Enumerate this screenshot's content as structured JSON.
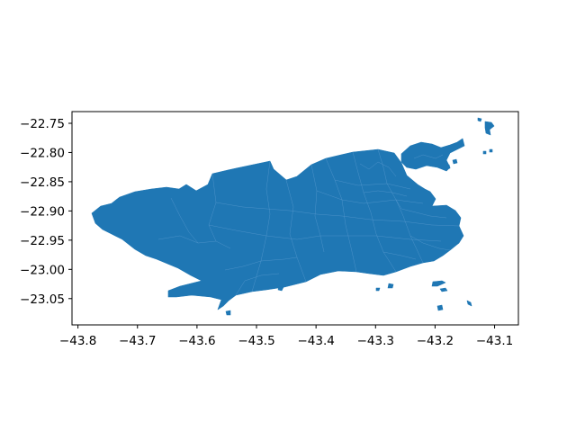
{
  "map": {
    "fill_color": "#1f77b4",
    "border_color": "#6fa8d8",
    "background_color": "#ffffff",
    "x_ticks": [
      "−43.8",
      "−43.7",
      "−43.6",
      "−43.5",
      "−43.4",
      "−43.3",
      "−43.2",
      "−43.1"
    ],
    "y_ticks": [
      "−22.75",
      "−22.80",
      "−22.85",
      "−22.90",
      "−22.95",
      "−23.00",
      "−23.05"
    ],
    "x_tick_values": [
      -43.8,
      -43.7,
      -43.6,
      -43.5,
      -43.4,
      -43.3,
      -43.2,
      -43.1
    ],
    "y_tick_values": [
      -22.75,
      -22.8,
      -22.85,
      -22.9,
      -22.95,
      -23.0,
      -23.05
    ],
    "xlim": [
      -43.81,
      -43.06
    ],
    "ylim": [
      -23.095,
      -22.73
    ]
  }
}
